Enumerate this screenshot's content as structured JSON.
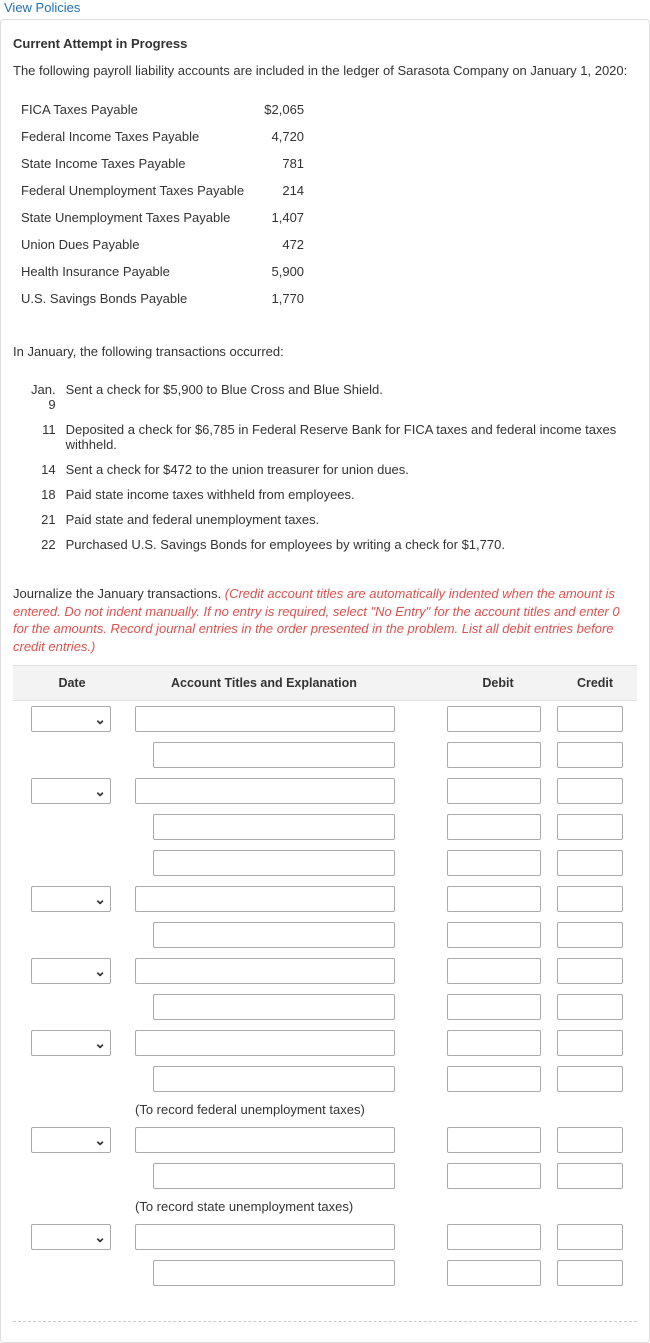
{
  "link_text": "View Policies",
  "section_title": "Current Attempt in Progress",
  "intro": "The following payroll liability accounts are included in the ledger of Sarasota Company on January 1, 2020:",
  "liabilities": [
    {
      "label": "FICA Taxes Payable",
      "amount": "$2,065"
    },
    {
      "label": "Federal Income Taxes Payable",
      "amount": "4,720"
    },
    {
      "label": "State Income Taxes Payable",
      "amount": "781"
    },
    {
      "label": "Federal Unemployment Taxes Payable",
      "amount": "214"
    },
    {
      "label": "State Unemployment Taxes Payable",
      "amount": "1,407"
    },
    {
      "label": "Union Dues Payable",
      "amount": "472"
    },
    {
      "label": "Health Insurance Payable",
      "amount": "5,900"
    },
    {
      "label": "U.S. Savings Bonds Payable",
      "amount": "1,770"
    }
  ],
  "subhead": "In January, the following transactions occurred:",
  "transactions": [
    {
      "date": "Jan. 9",
      "text": "Sent a check for $5,900 to Blue Cross and Blue Shield."
    },
    {
      "date": "11",
      "text": "Deposited a check for $6,785 in Federal Reserve Bank for FICA taxes and federal income taxes withheld."
    },
    {
      "date": "14",
      "text": "Sent a check for $472 to the union treasurer for union dues."
    },
    {
      "date": "18",
      "text": "Paid state income taxes withheld from employees."
    },
    {
      "date": "21",
      "text": "Paid state and federal unemployment taxes."
    },
    {
      "date": "22",
      "text": "Purchased U.S. Savings Bonds for employees by writing a check for $1,770."
    }
  ],
  "instr_black": "Journalize the January transactions. ",
  "instr_red": "(Credit account titles are automatically indented when the amount is entered. Do not indent manually. If no entry is required, select \"No Entry\" for the account titles and enter 0 for the amounts. Record journal entries in the order presented in the problem. List all debit entries before credit entries.)",
  "columns": {
    "date": "Date",
    "acct": "Account Titles and Explanation",
    "debit": "Debit",
    "credit": "Credit"
  },
  "entries": [
    {
      "selector": true,
      "rows": 2
    },
    {
      "selector": true,
      "rows": 3
    },
    {
      "selector": true,
      "rows": 2
    },
    {
      "selector": true,
      "rows": 2
    },
    {
      "selector": true,
      "rows": 2,
      "note": "(To record federal unemployment taxes)"
    },
    {
      "selector": true,
      "rows": 2,
      "note": "(To record state unemployment taxes)"
    },
    {
      "selector": true,
      "rows": 2
    }
  ],
  "colors": {
    "link": "#2271b3",
    "red": "#d9534f",
    "header_bg": "#f3f3f3",
    "border": "#dddddd",
    "input_border": "#aaaaaa"
  }
}
